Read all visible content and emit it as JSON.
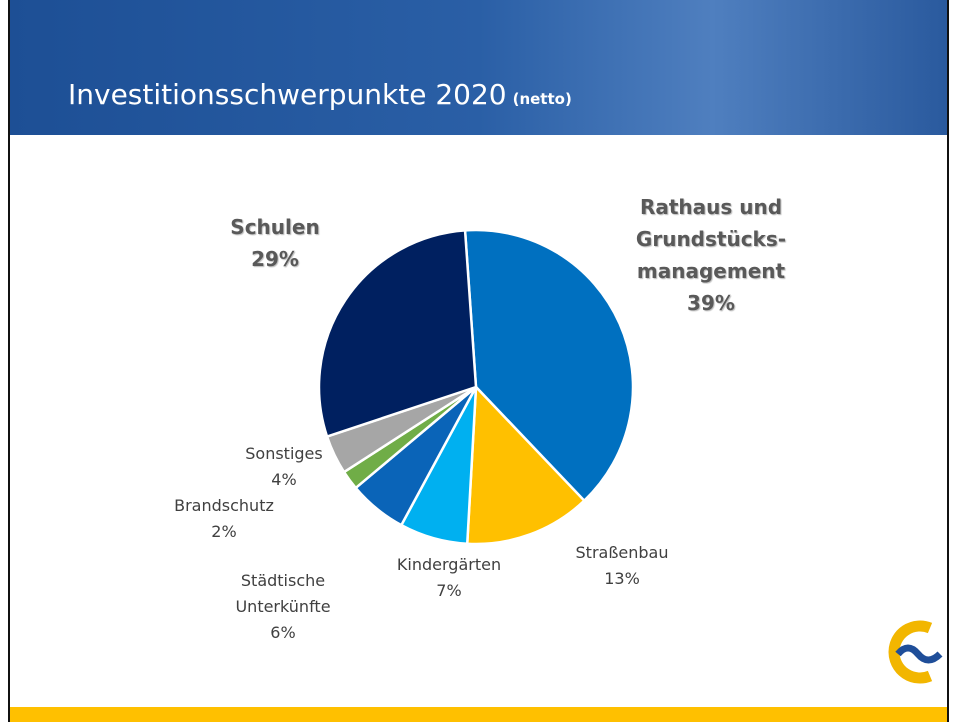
{
  "chart_data": {
    "type": "pie",
    "title": "Investitionsschwerpunkte 2020",
    "subtitle": "(netto)",
    "categories": [
      "Rathaus und\nGrundstücks-\nmanagement",
      "Straßenbau",
      "Kindergärten",
      "Städtische\nUnterkünfte",
      "Brandschutz",
      "Sonstiges",
      "Schulen"
    ],
    "values": [
      39,
      13,
      7,
      6,
      2,
      4,
      29
    ],
    "value_labels": [
      "39%",
      "13%",
      "7%",
      "6%",
      "2%",
      "4%",
      "29%"
    ],
    "colors": [
      "#0070c0",
      "#ffc000",
      "#00b0f0",
      "#0a64b8",
      "#70ad47",
      "#a6a6a6",
      "#002060"
    ]
  }
}
